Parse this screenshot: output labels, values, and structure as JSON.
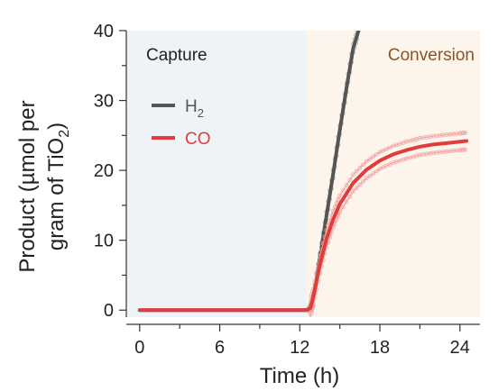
{
  "chart_data": {
    "type": "line",
    "xlabel": "Time (h)",
    "ylabel_line1": "Product (µmol per",
    "ylabel_line2_prefix": "gram of TiO",
    "ylabel_line2_sub": "2",
    "ylabel_line2_suffix": ")",
    "xlim": [
      -1,
      25.5
    ],
    "ylim": [
      -1,
      40
    ],
    "xticks": [
      0,
      6,
      12,
      18,
      24
    ],
    "yticks": [
      0,
      10,
      20,
      30,
      40
    ],
    "grid": false,
    "legend_position": "upper-left",
    "regions": [
      {
        "label": "Capture",
        "x_start": -1,
        "x_end": 12.5,
        "color": "#eef3f8",
        "label_color": "#222222"
      },
      {
        "label": "Conversion",
        "x_start": 12.5,
        "x_end": 25.5,
        "color": "#fdf5ec",
        "label_color": "#8a5428"
      }
    ],
    "series": [
      {
        "name": "H",
        "name_sub": "2",
        "color": "#555555",
        "x": [
          0,
          3,
          6,
          9,
          12,
          12.5,
          12.8,
          13,
          13.5,
          14,
          14.5,
          15,
          15.5,
          16,
          16.4
        ],
        "y": [
          0,
          0,
          0,
          0,
          0,
          0,
          0.3,
          1.5,
          7.5,
          13.5,
          19.5,
          25.8,
          31.8,
          37.5,
          40
        ],
        "band": 0.6
      },
      {
        "name": "CO",
        "color": "#e03c3c",
        "band_color": "#f2a5a5",
        "x": [
          0,
          3,
          6,
          9,
          12,
          12.5,
          12.8,
          13,
          13.5,
          14,
          14.5,
          15,
          16,
          17,
          18,
          19,
          20,
          21,
          22,
          23,
          24,
          24.5
        ],
        "y": [
          0,
          0,
          0,
          0,
          0,
          0,
          0.3,
          1.8,
          6.5,
          10.2,
          13.0,
          15.2,
          18.2,
          20.1,
          21.4,
          22.3,
          22.9,
          23.4,
          23.7,
          23.9,
          24.1,
          24.2
        ],
        "band": 1.2
      }
    ]
  }
}
